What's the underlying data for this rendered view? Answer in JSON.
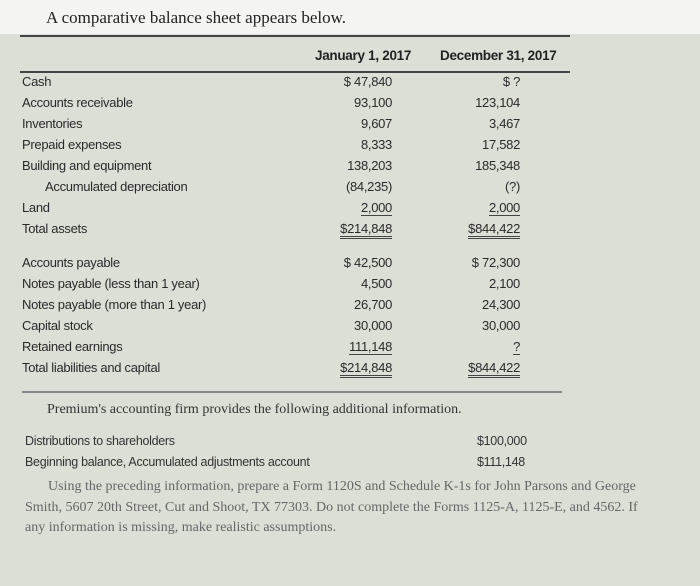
{
  "title": "A comparative balance sheet appears below.",
  "columns": [
    "January 1, 2017",
    "December 31, 2017"
  ],
  "assets": [
    {
      "label": "Cash",
      "jan": "$ 47,840",
      "dec": "$  ?"
    },
    {
      "label": "Accounts receivable",
      "jan": "93,100",
      "dec": "123,104"
    },
    {
      "label": "Inventories",
      "jan": "9,607",
      "dec": "3,467"
    },
    {
      "label": "Prepaid expenses",
      "jan": "8,333",
      "dec": "17,582"
    },
    {
      "label": "Building and equipment",
      "jan": "138,203",
      "dec": "185,348"
    },
    {
      "label": "Accumulated depreciation",
      "jan": "(84,235)",
      "dec": "(?)"
    },
    {
      "label": "Land",
      "jan": "2,000",
      "dec": "2,000"
    },
    {
      "label": "Total assets",
      "jan": "$214,848",
      "dec": "$844,422"
    }
  ],
  "liabilities": [
    {
      "label": "Accounts payable",
      "jan": "$ 42,500",
      "dec": "$ 72,300"
    },
    {
      "label": "Notes payable (less than 1 year)",
      "jan": "4,500",
      "dec": "2,100"
    },
    {
      "label": "Notes payable (more than 1 year)",
      "jan": "26,700",
      "dec": "24,300"
    },
    {
      "label": "Capital stock",
      "jan": "30,000",
      "dec": "30,000"
    },
    {
      "label": "Retained earnings",
      "jan": "111,148",
      "dec": "?"
    },
    {
      "label": "Total liabilities and capital",
      "jan": "$214,848",
      "dec": "$844,422"
    }
  ],
  "additional_intro": "Premium's accounting firm provides the following additional information.",
  "additional": [
    {
      "label": "Distributions to shareholders",
      "value": "$100,000"
    },
    {
      "label": "Beginning balance, Accumulated adjustments account",
      "value": "$111,148"
    }
  ],
  "instructions": "Using the preceding information, prepare a Form 1120S and Schedule K-1s for John Parsons and George Smith, 5607 20th Street, Cut and Shoot, TX 77303. Do not complete the Forms 1125-A, 1125-E, and 4562. If any information is missing, make realistic assumptions."
}
